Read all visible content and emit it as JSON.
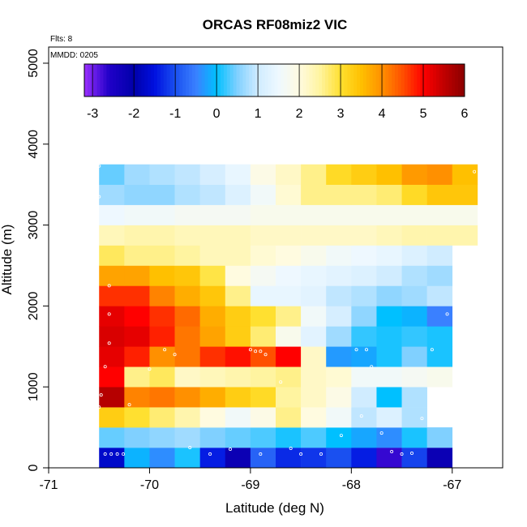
{
  "chart_data": {
    "type": "heatmap",
    "title": "ORCAS RF08miz2 VIC",
    "annotations": {
      "flights": "Flts: 8",
      "mmdd": "MMDD: 0205"
    },
    "xlabel": "Latitude (deg N)",
    "ylabel": "Altitude (m)",
    "xlim": [
      -71,
      -66.5
    ],
    "ylim": [
      0,
      5200
    ],
    "x_ticks": [
      -71,
      -70,
      -69,
      -68,
      -67
    ],
    "x_tick_labels": [
      "-71",
      "-70",
      "-69",
      "-68",
      "-67"
    ],
    "y_ticks": [
      0,
      1000,
      2000,
      3000,
      4000,
      5000
    ],
    "y_tick_labels": [
      "0",
      "1000",
      "2000",
      "3000",
      "4000",
      "5000"
    ],
    "bin_x_start": -70.5,
    "bin_width_deg": 0.25,
    "bin_y_start": 0,
    "bin_height_m": 250,
    "colorbar": {
      "range": [
        -3.2,
        6.0
      ],
      "ticks": [
        -3,
        -2,
        -1,
        0,
        1,
        2,
        3,
        4,
        5,
        6
      ],
      "tick_labels": [
        "-3",
        "-2",
        "-1",
        "0",
        "1",
        "2",
        "3",
        "4",
        "5",
        "6"
      ],
      "stops": [
        {
          "v": -3.2,
          "c": "#9b30ff"
        },
        {
          "v": -2.6,
          "c": "#2000c8"
        },
        {
          "v": -2.0,
          "c": "#0000aa"
        },
        {
          "v": -1.5,
          "c": "#0010e0"
        },
        {
          "v": -1.0,
          "c": "#1a50f0"
        },
        {
          "v": -0.5,
          "c": "#3a80ff"
        },
        {
          "v": 0.0,
          "c": "#00c0ff"
        },
        {
          "v": 0.5,
          "c": "#80d0ff"
        },
        {
          "v": 1.0,
          "c": "#d0ecff"
        },
        {
          "v": 1.5,
          "c": "#eef8ff"
        },
        {
          "v": 2.0,
          "c": "#fffbe0"
        },
        {
          "v": 2.5,
          "c": "#fff4a0"
        },
        {
          "v": 3.0,
          "c": "#ffe030"
        },
        {
          "v": 3.5,
          "c": "#ffc000"
        },
        {
          "v": 4.0,
          "c": "#ff9000"
        },
        {
          "v": 4.5,
          "c": "#ff5000"
        },
        {
          "v": 5.0,
          "c": "#ff0000"
        },
        {
          "v": 5.5,
          "c": "#c00000"
        },
        {
          "v": 6.0,
          "c": "#8b0000"
        }
      ]
    },
    "rows": [
      [
        -1.7,
        -0.1,
        -0.4,
        0.1,
        -1.4,
        -2.2,
        -0.8,
        -1.3,
        -1.2,
        -1.0,
        -1.4,
        -2.7,
        -1.1,
        -2.2
      ],
      [
        0.4,
        0.5,
        0.6,
        0.7,
        0.5,
        0.4,
        0.3,
        0.1,
        0.3,
        0.0,
        -0.2,
        -0.4,
        0.1,
        0.5
      ],
      [
        3.3,
        3.0,
        2.7,
        2.4,
        2.0,
        1.6,
        1.9,
        2.6,
        2.0,
        1.6,
        0.9,
        1.2,
        0.8
      ],
      [
        5.6,
        4.1,
        4.2,
        4.0,
        3.7,
        3.3,
        3.1,
        2.5,
        2.2,
        1.9,
        1.0,
        0.0,
        0.8
      ],
      [
        5.0,
        2.6,
        2.8,
        2.2,
        2.3,
        2.4,
        2.5,
        2.6,
        2.2,
        2.1,
        1.6,
        1.6,
        1.7,
        1.8
      ],
      [
        5.2,
        4.8,
        4.0,
        4.2,
        4.7,
        4.9,
        4.5,
        5.0,
        2.2,
        -0.3,
        -0.2,
        0.1,
        0.5,
        0.1
      ],
      [
        5.3,
        5.2,
        4.8,
        4.2,
        3.8,
        3.3,
        2.7,
        1.8,
        1.3,
        0.7,
        0.2,
        0.1,
        0.2,
        0.1
      ],
      [
        5.2,
        5.0,
        4.7,
        4.3,
        3.7,
        3.3,
        3.0,
        2.6,
        1.6,
        1.1,
        0.6,
        0.0,
        -0.1,
        -0.5
      ],
      [
        4.7,
        4.7,
        4.1,
        3.7,
        3.4,
        2.6,
        1.4,
        1.4,
        1.3,
        0.9,
        0.8,
        0.6,
        0.7,
        0.9
      ],
      [
        3.8,
        3.8,
        3.5,
        3.4,
        2.9,
        2.0,
        1.7,
        1.5,
        1.4,
        1.3,
        1.2,
        1.0,
        0.8,
        0.7
      ],
      [
        2.8,
        2.6,
        2.6,
        2.5,
        2.3,
        2.3,
        2.1,
        2.0,
        1.8,
        1.6,
        1.5,
        1.4,
        1.2,
        1.0
      ],
      [
        2.3,
        2.4,
        2.4,
        2.3,
        2.3,
        2.3,
        2.2,
        2.2,
        2.2,
        2.2,
        2.2,
        2.3,
        2.4,
        2.4,
        2.4
      ],
      [
        1.5,
        1.6,
        1.6,
        1.7,
        1.7,
        1.7,
        1.8,
        1.8,
        1.8,
        1.8,
        1.8,
        1.8,
        1.8,
        1.8,
        1.8
      ],
      [
        0.7,
        0.6,
        0.6,
        0.8,
        0.9,
        1.2,
        1.6,
        2.1,
        2.6,
        2.6,
        2.6,
        2.7,
        3.1,
        3.4,
        3.4
      ],
      [
        0.4,
        0.7,
        0.8,
        0.9,
        1.1,
        1.4,
        1.9,
        2.2,
        2.6,
        3.1,
        3.3,
        3.5,
        3.9,
        4.0,
        3.5
      ]
    ]
  }
}
